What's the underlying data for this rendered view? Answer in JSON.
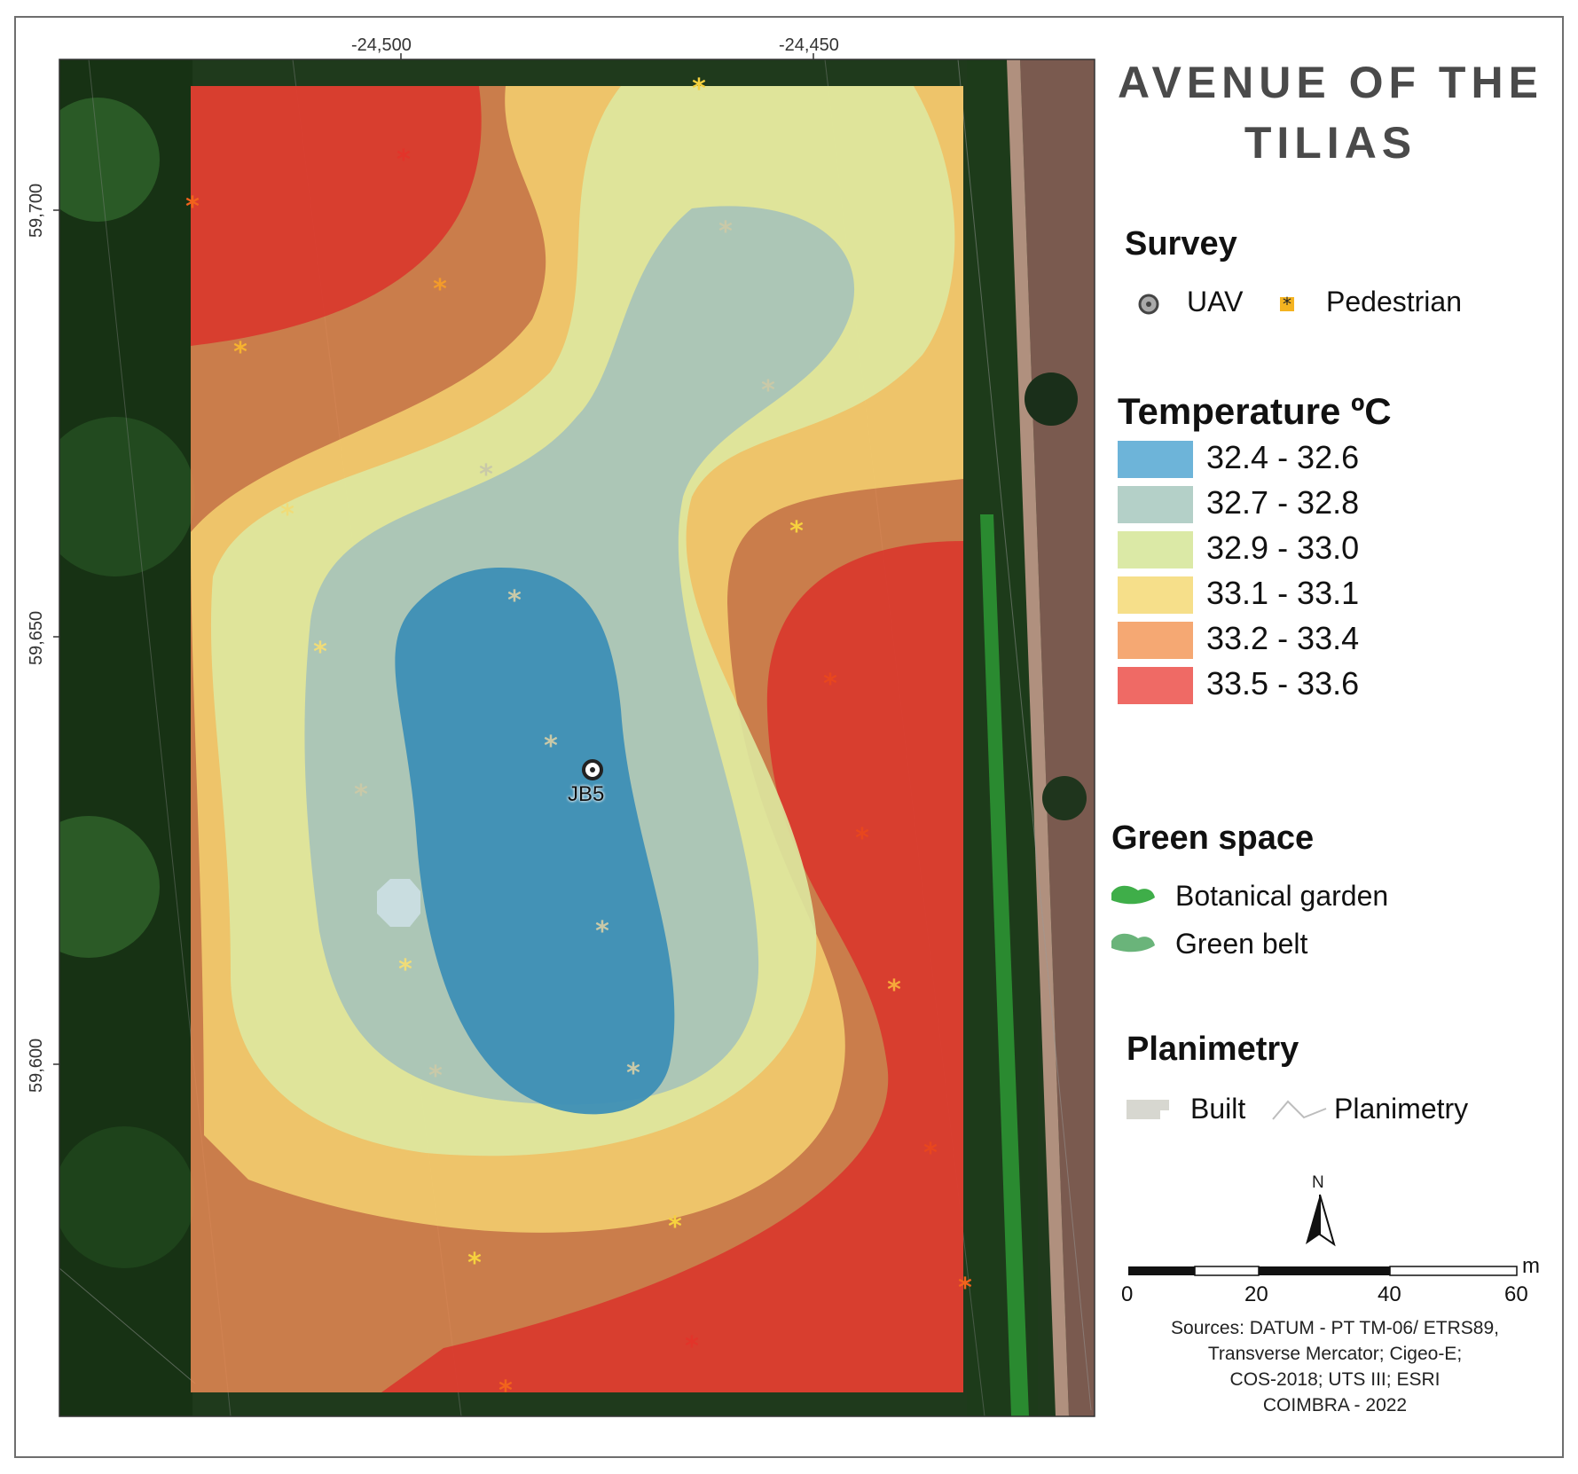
{
  "map": {
    "title_line1": "AVENUE OF THE",
    "title_line2": "TILIAS",
    "x_ticks": [
      "-24,500",
      "-24,450"
    ],
    "y_ticks": [
      "59,700",
      "59,650",
      "59,600"
    ],
    "station_label": "JB5"
  },
  "legend": {
    "survey_heading": "Survey",
    "survey_items": [
      {
        "label": "UAV",
        "icon": "uav-circle-icon"
      },
      {
        "label": "Pedestrian",
        "icon": "pedestrian-asterisk-icon"
      }
    ],
    "temperature_heading": "Temperature ºC",
    "temperature_classes": [
      {
        "label": "32.4 - 32.6",
        "color": "#6db4d9"
      },
      {
        "label": "32.7 - 32.8",
        "color": "#b4d0c8"
      },
      {
        "label": "32.9 - 33.0",
        "color": "#dbe9a6"
      },
      {
        "label": "33.1 - 33.1",
        "color": "#f6df8a"
      },
      {
        "label": "33.2 - 33.4",
        "color": "#f5a873"
      },
      {
        "label": "33.5 - 33.6",
        "color": "#ef6a65"
      }
    ],
    "green_heading": "Green space",
    "green_items": [
      {
        "label": "Botanical garden",
        "color": "#3fae49"
      },
      {
        "label": "Green belt",
        "color": "#6ab47a"
      }
    ],
    "plan_heading": "Planimetry",
    "plan_items": [
      {
        "label": "Built"
      },
      {
        "label": "Planimetry"
      }
    ]
  },
  "north_arrow": {
    "label": "N"
  },
  "scale_bar": {
    "unit": "m",
    "ticks": [
      "0",
      "20",
      "40",
      "60"
    ]
  },
  "sources": {
    "line1": "Sources: DATUM - PT TM-06/ ETRS89,",
    "line2": "Transverse Mercator; Cigeo-E;",
    "line3": "COS-2018; UTS III; ESRI",
    "line4": "COIMBRA - 2022"
  }
}
